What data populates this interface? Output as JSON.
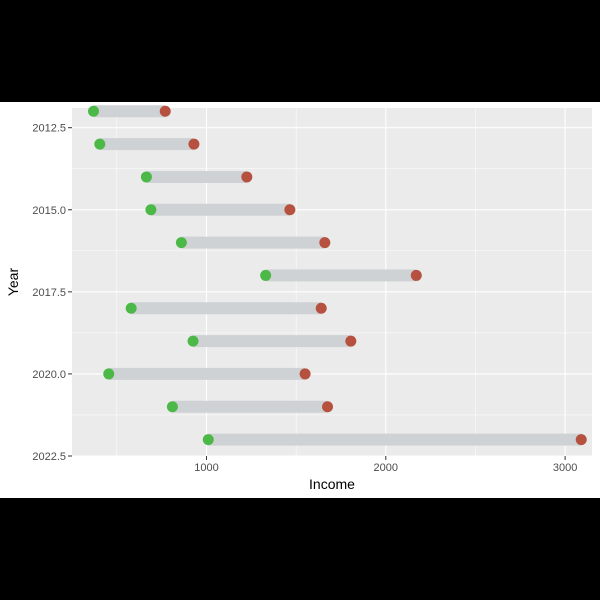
{
  "chart_data": {
    "type": "dumbbell",
    "xlabel": "Income",
    "ylabel": "Year",
    "xlim": [
      250,
      3150
    ],
    "ylim": [
      2011.9,
      2022.5
    ],
    "y_reversed": true,
    "x_ticks": [
      1000,
      2000,
      3000
    ],
    "x_tick_labels": [
      "1000",
      "2000",
      "3000"
    ],
    "y_ticks": [
      2012.5,
      2015.0,
      2017.5,
      2020.0,
      2022.5
    ],
    "y_tick_labels": [
      "2012.5",
      "2015.0",
      "2017.5",
      "2020.0",
      "2022.5"
    ],
    "grid": true,
    "legend": "none",
    "colors": {
      "panel": "#ebebeb",
      "grid_major": "#ffffff",
      "segment": "#cfd2d5",
      "start_point": "#4cb847",
      "end_point": "#b5513e"
    },
    "rows": [
      {
        "year": 2012,
        "start": 370,
        "end": 770
      },
      {
        "year": 2013,
        "start": 405,
        "end": 930
      },
      {
        "year": 2014,
        "start": 665,
        "end": 1225
      },
      {
        "year": 2015,
        "start": 690,
        "end": 1465
      },
      {
        "year": 2016,
        "start": 860,
        "end": 1660
      },
      {
        "year": 2017,
        "start": 1330,
        "end": 2170
      },
      {
        "year": 2018,
        "start": 580,
        "end": 1640
      },
      {
        "year": 2019,
        "start": 925,
        "end": 1805
      },
      {
        "year": 2020,
        "start": 455,
        "end": 1550
      },
      {
        "year": 2021,
        "start": 810,
        "end": 1675
      },
      {
        "year": 2022,
        "start": 1010,
        "end": 3090
      }
    ]
  }
}
